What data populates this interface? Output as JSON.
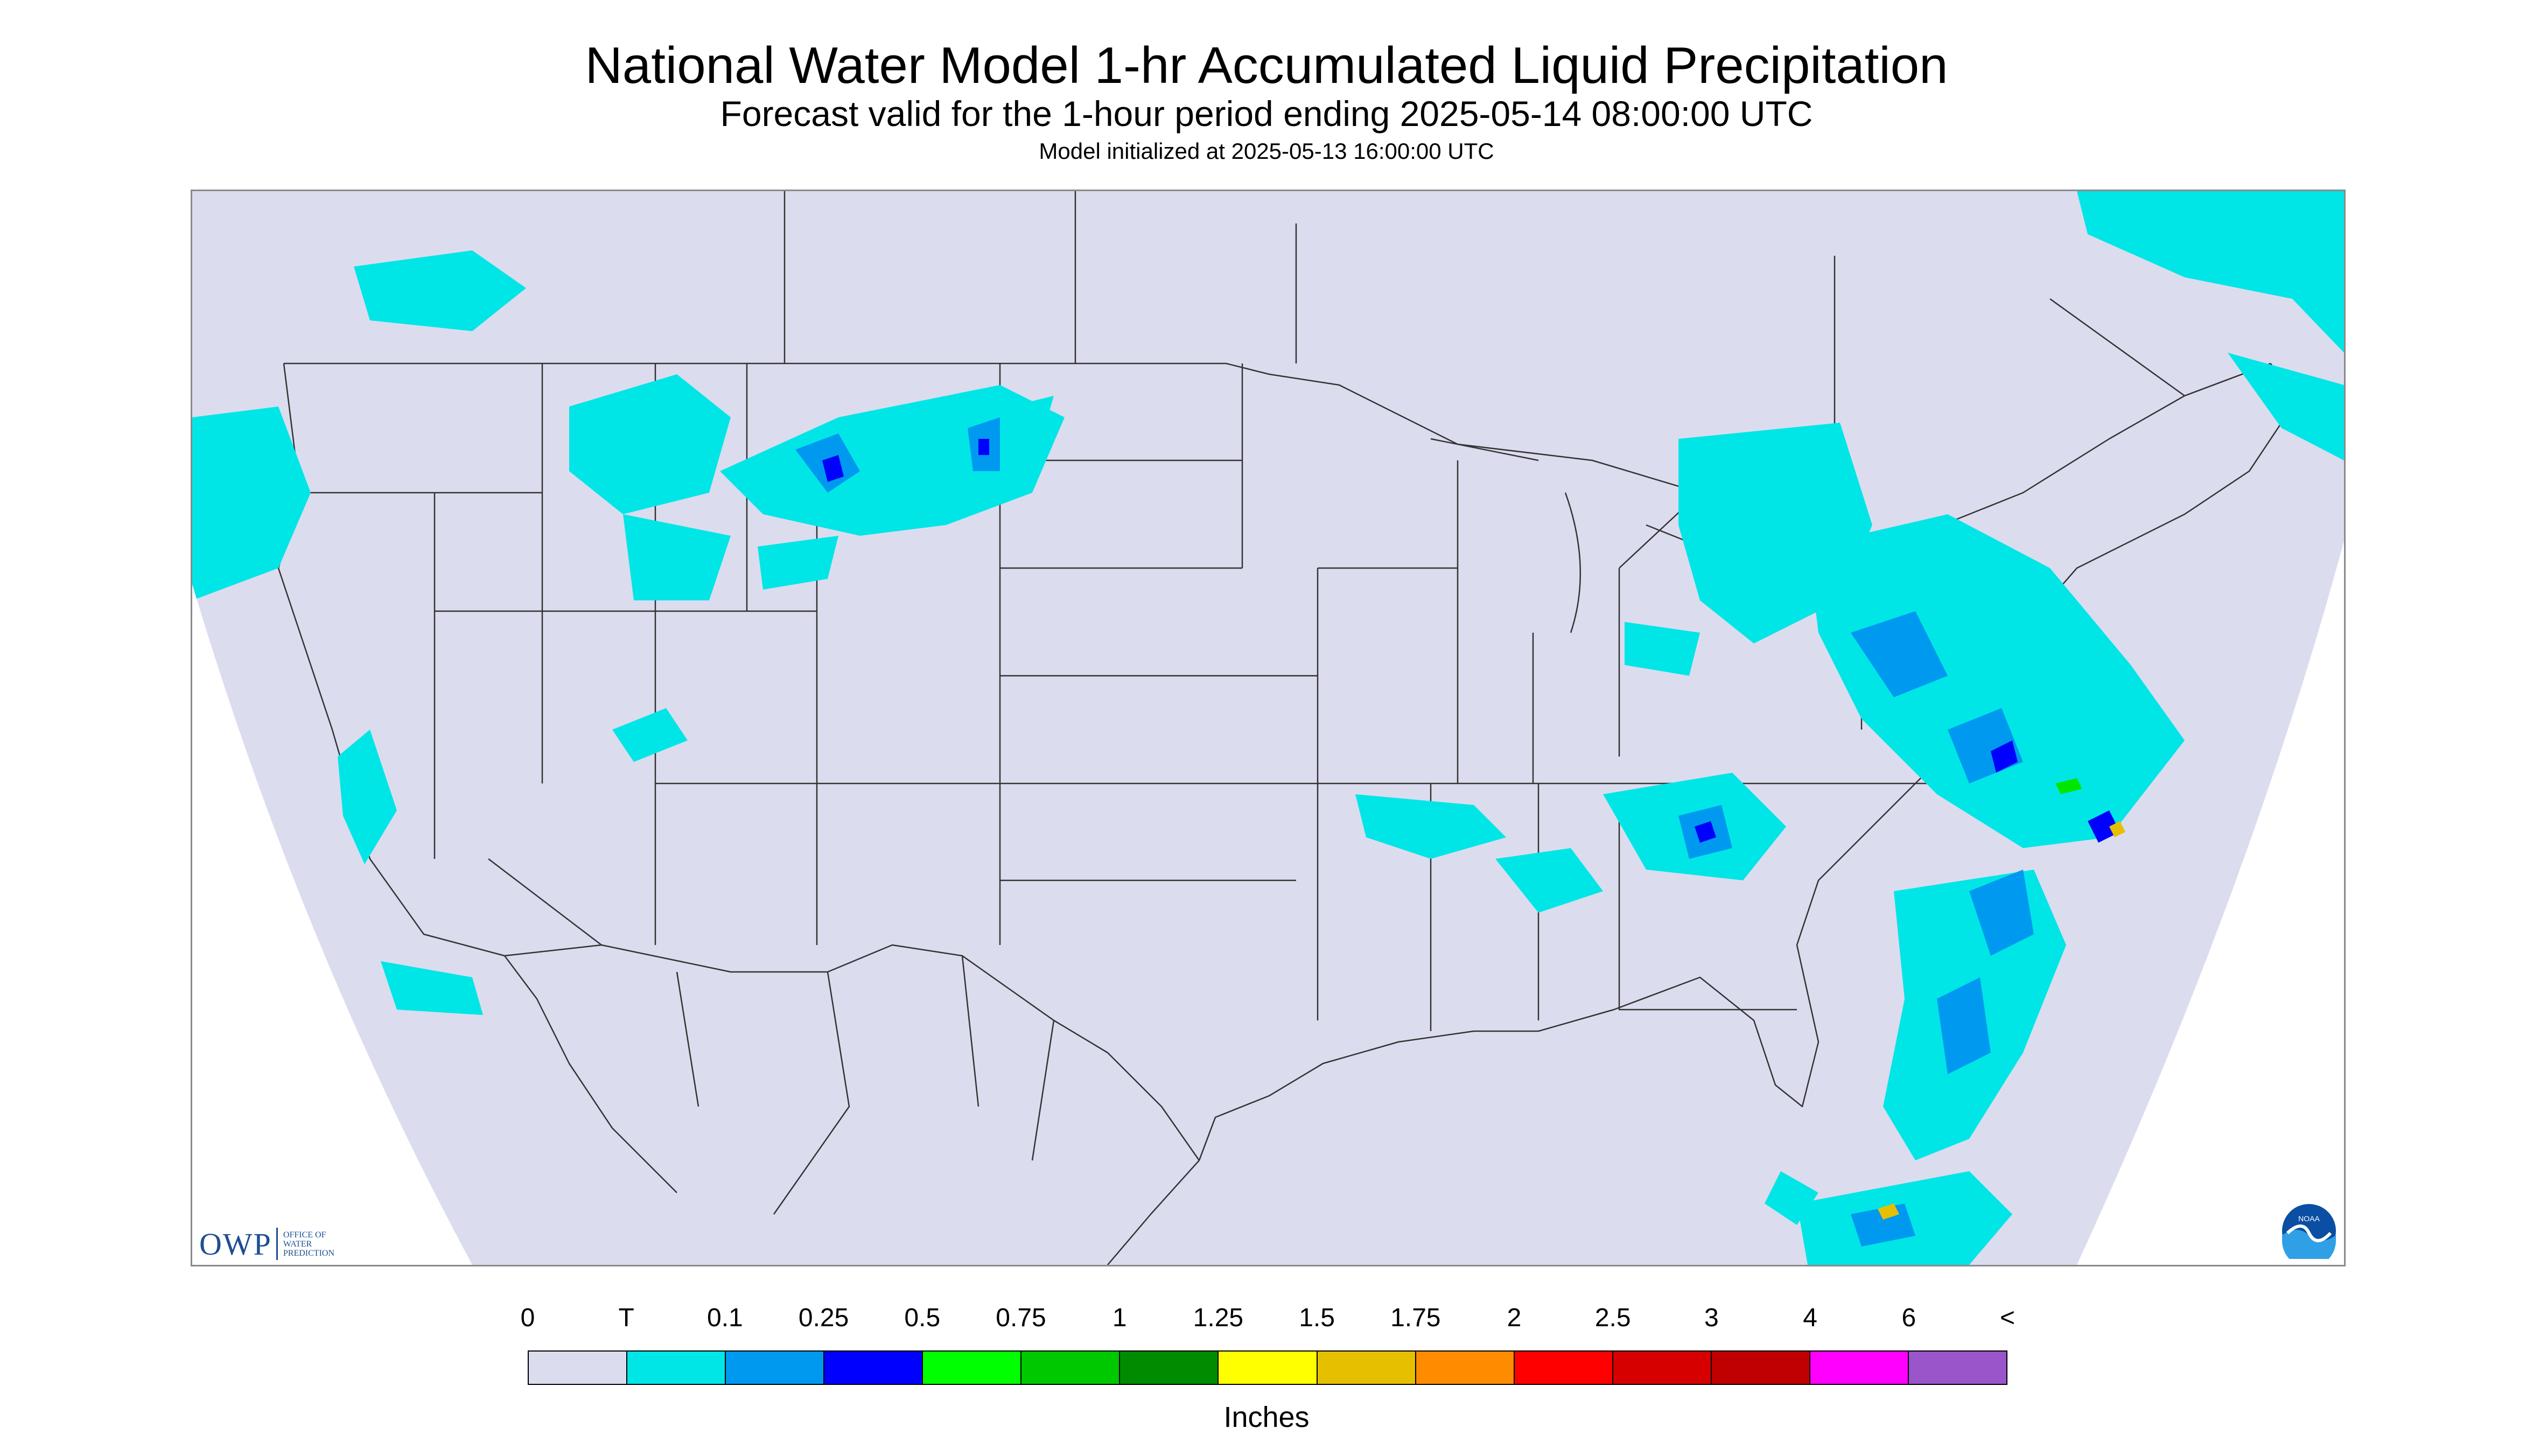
{
  "header": {
    "title": "National Water Model 1-hr Accumulated Liquid Precipitation",
    "subtitle": "Forecast valid for the 1-hour period ending 2025-05-14 08:00:00 UTC",
    "init": "Model initialized at 2025-05-13 16:00:00 UTC"
  },
  "map": {
    "background_color": "#dcdcef",
    "outside_color": "#ffffff",
    "boundary_color": "#333333",
    "precip_colors": {
      "trace": "#00e6e6",
      "light": "#0099f0",
      "moderate": "#0000ff",
      "heavy": "#00e600",
      "very_heavy": "#e6c000"
    },
    "notable_features": [
      "light precipitation across the Pacific Northwest and northern Rockies",
      "precipitation over the Great Lakes and Northeast",
      "heavier cells along the Mid-Atlantic coast",
      "offshore bands in the western Atlantic"
    ]
  },
  "logos": {
    "owp": {
      "mark": "OWP",
      "text": "OFFICE OF\nWATER\nPREDICTION"
    },
    "noaa": {
      "text": "NOAA"
    }
  },
  "legend": {
    "units": "Inches",
    "tick_labels": [
      "0",
      "T",
      "0.1",
      "0.25",
      "0.5",
      "0.75",
      "1",
      "1.25",
      "1.5",
      "1.75",
      "2",
      "2.5",
      "3",
      "4",
      "6",
      "<"
    ],
    "colors": [
      "#dcdcef",
      "#00e6e6",
      "#0099f0",
      "#0000ff",
      "#00ff00",
      "#00c800",
      "#008c00",
      "#ffff00",
      "#e6c000",
      "#ff8c00",
      "#ff0000",
      "#d70000",
      "#c00000",
      "#ff00ff",
      "#9955c9"
    ]
  }
}
